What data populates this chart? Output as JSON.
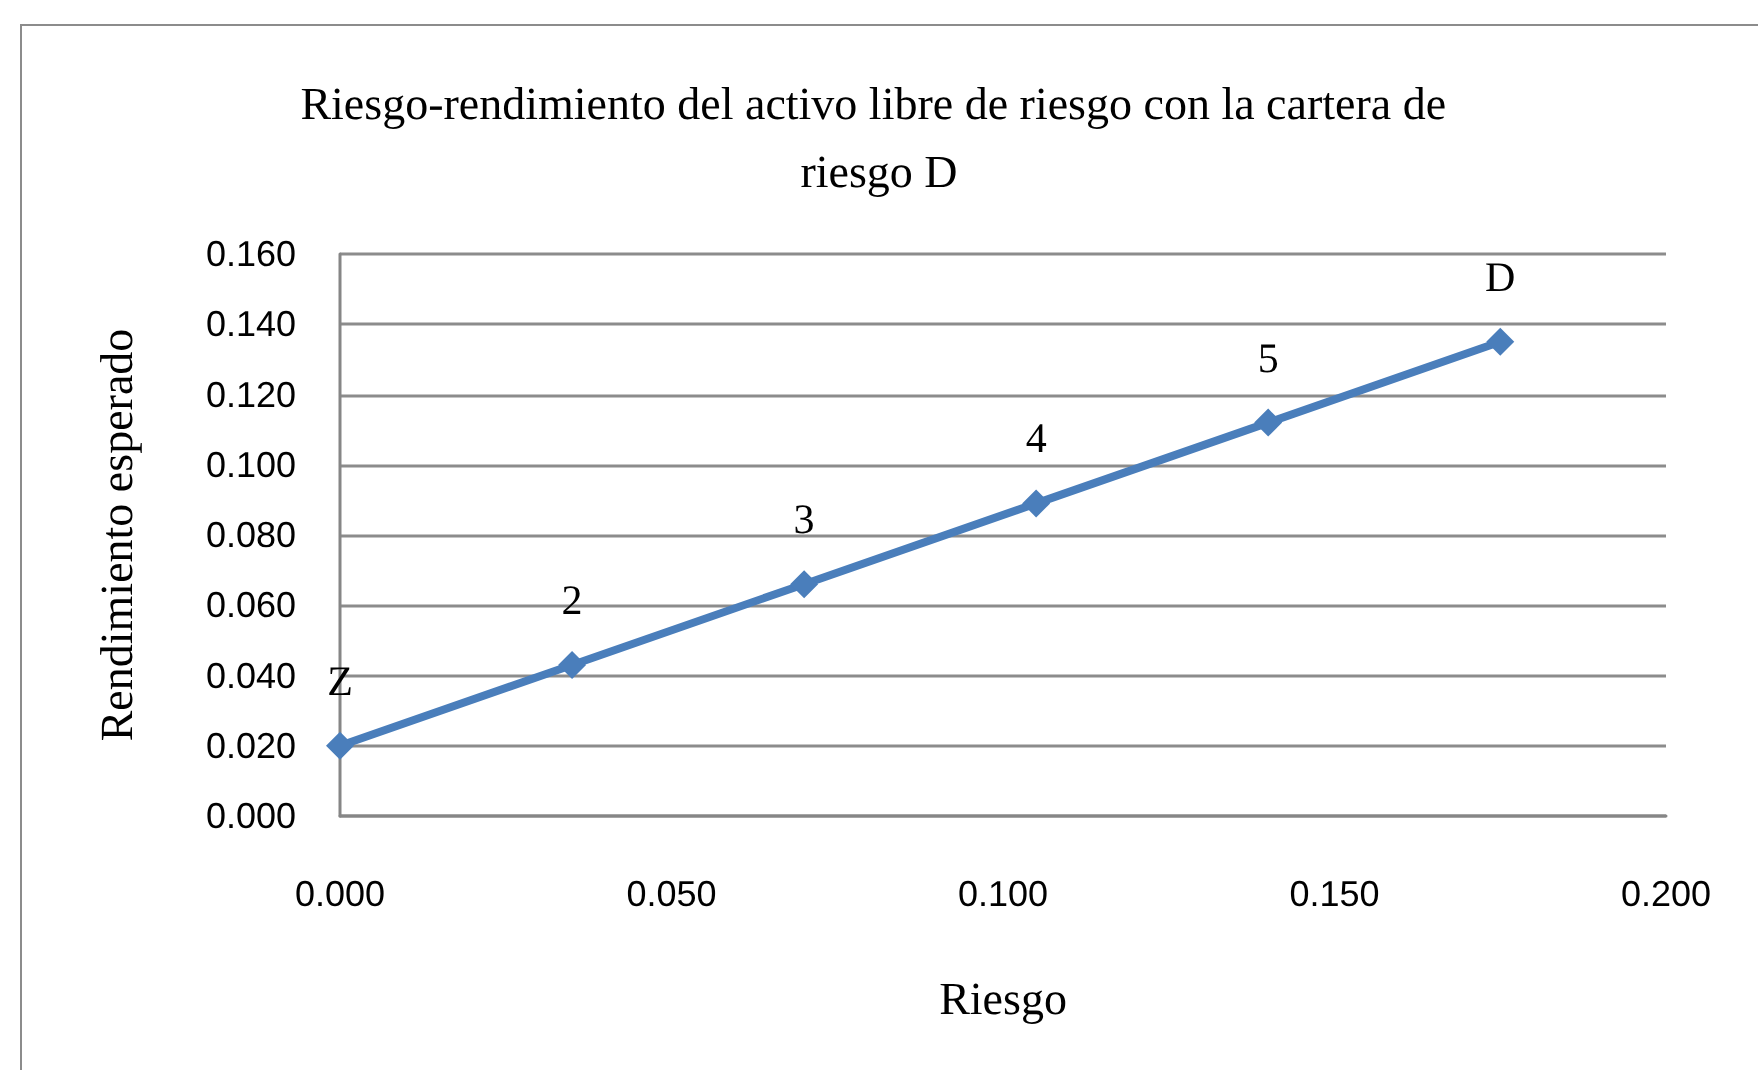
{
  "chart_data": {
    "type": "line",
    "title": "Riesgo-rendimiento del activo libre de riesgo con la cartera de riesgo D",
    "xlabel": "Riesgo",
    "ylabel": "Rendimiento esperado",
    "x": [
      0,
      0.035,
      0.07,
      0.105,
      0.14,
      0.175
    ],
    "series": [
      {
        "color": "#4a7ebb",
        "values": [
          0.02,
          0.043,
          0.066,
          0.089,
          0.112,
          0.135
        ]
      }
    ],
    "xlim": [
      0,
      0.2
    ],
    "xticks": [
      {
        "value": 0,
        "label": "0.000"
      },
      {
        "value": 0.05,
        "label": "0.050"
      },
      {
        "value": 0.1,
        "label": "0.100"
      },
      {
        "value": 0.15,
        "label": "0.150"
      },
      {
        "value": 0.2,
        "label": "0.200"
      }
    ],
    "ylim": [
      0,
      0.16
    ],
    "yticks": [
      {
        "value": 0,
        "label": "0.000"
      },
      {
        "value": 0.02,
        "label": "0.020"
      },
      {
        "value": 0.04,
        "label": "0.040"
      },
      {
        "value": 0.06,
        "label": "0.060"
      },
      {
        "value": 0.08,
        "label": "0.080"
      },
      {
        "value": 0.1,
        "label": "0.100"
      },
      {
        "value": 0.12,
        "label": "0.120"
      },
      {
        "value": 0.14,
        "label": "0.140"
      },
      {
        "value": 0.16,
        "label": "0.160"
      }
    ],
    "grid": "y",
    "marker": "diamond",
    "line_style": "solid",
    "annotations": [
      {
        "text": "Z",
        "x": 0,
        "y": 0.02
      },
      {
        "text": "2",
        "x": 0.035,
        "y": 0.043
      },
      {
        "text": "3",
        "x": 0.07,
        "y": 0.066
      },
      {
        "text": "4",
        "x": 0.105,
        "y": 0.089
      },
      {
        "text": "5",
        "x": 0.14,
        "y": 0.112
      },
      {
        "text": "D",
        "x": 0.175,
        "y": 0.135
      }
    ]
  }
}
